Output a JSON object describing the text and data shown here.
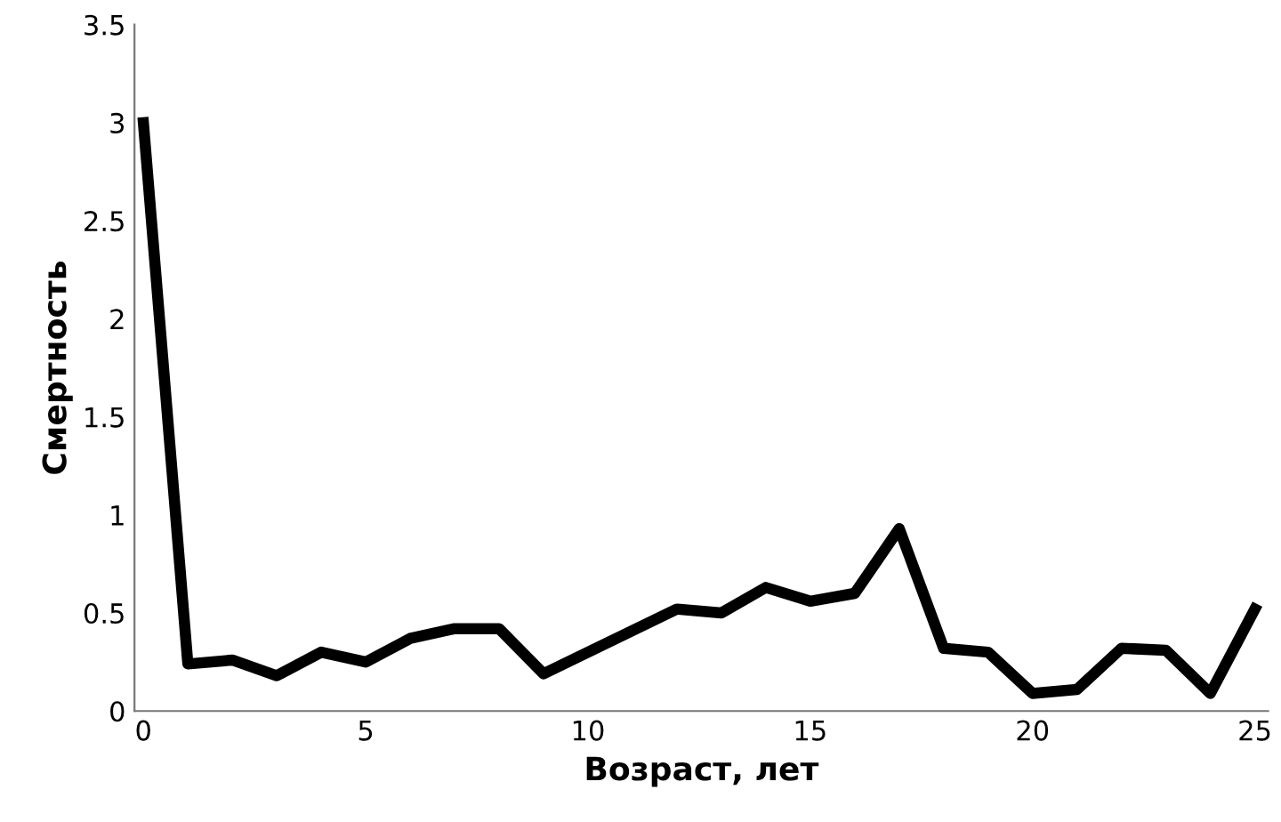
{
  "chart_data": {
    "type": "line",
    "xlabel": "Возраст, лет",
    "ylabel": "Смертность",
    "x": [
      0,
      1,
      2,
      3,
      4,
      5,
      6,
      7,
      8,
      9,
      10,
      11,
      12,
      13,
      14,
      15,
      16,
      17,
      18,
      19,
      20,
      21,
      22,
      23,
      24,
      25
    ],
    "series": [
      {
        "color": "#000000",
        "values": [
          3.0,
          0.24,
          0.26,
          0.18,
          0.3,
          0.25,
          0.37,
          0.42,
          0.42,
          0.19,
          0.3,
          0.41,
          0.52,
          0.5,
          0.63,
          0.56,
          0.6,
          0.93,
          0.32,
          0.3,
          0.09,
          0.11,
          0.32,
          0.31,
          0.09,
          0.52
        ]
      }
    ],
    "xlim": [
      -0.2,
      25.3
    ],
    "ylim": [
      0,
      3.5
    ],
    "xticks": [
      0,
      5,
      10,
      15,
      20,
      25
    ],
    "yticks": [
      0,
      0.5,
      1,
      1.5,
      2,
      2.5,
      3,
      3.5
    ],
    "grid": false,
    "legend": false,
    "marker": "none",
    "line_style": "solid"
  }
}
